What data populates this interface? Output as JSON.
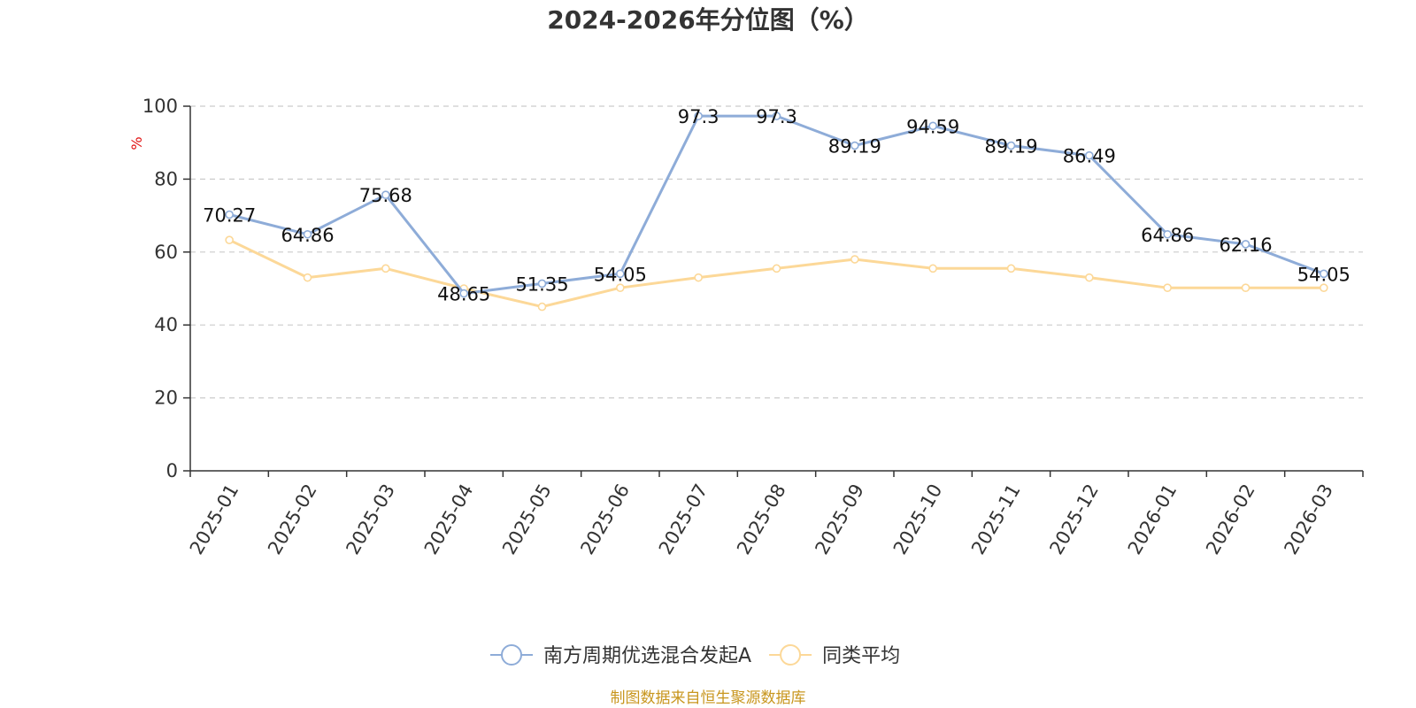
{
  "chart_data": {
    "type": "line",
    "title": "2024-2026年分位图（%）",
    "ylabel": "%",
    "xlabel": "",
    "ylim": [
      0,
      100
    ],
    "yticks": [
      0,
      20,
      40,
      60,
      80,
      100
    ],
    "grid": true,
    "legend_position": "bottom",
    "categories": [
      "2025-01",
      "2025-02",
      "2025-03",
      "2025-04",
      "2025-05",
      "2025-06",
      "2025-07",
      "2025-08",
      "2025-09",
      "2025-10",
      "2025-11",
      "2025-12",
      "2026-01",
      "2026-02",
      "2026-03"
    ],
    "series": [
      {
        "name": "南方周期优选混合发起A",
        "color": "#8eacd8",
        "show_labels": true,
        "values": [
          70.27,
          64.86,
          75.68,
          48.65,
          51.35,
          54.05,
          97.3,
          97.3,
          89.19,
          94.59,
          89.19,
          86.49,
          64.86,
          62.16,
          54.05
        ]
      },
      {
        "name": "同类平均",
        "color": "#fcd898",
        "show_labels": false,
        "values": [
          63.3,
          53,
          55.5,
          50,
          45,
          50.2,
          53,
          55.5,
          58,
          55.5,
          55.5,
          53,
          50.2,
          50.2,
          50.2
        ]
      }
    ]
  },
  "source": "制图数据来自恒生聚源数据库"
}
